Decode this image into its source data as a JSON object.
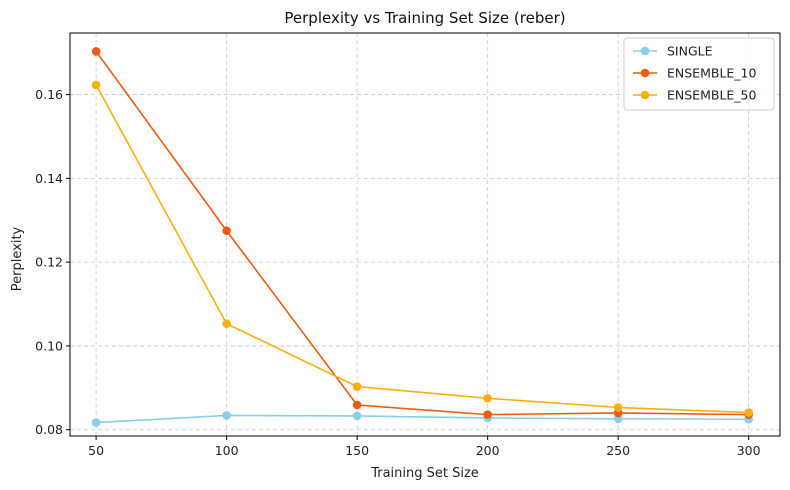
{
  "chart_data": {
    "type": "line",
    "title": "Perplexity vs Training Set Size (reber)",
    "xlabel": "Training Set Size",
    "ylabel": "Perplexity",
    "x": [
      50,
      100,
      150,
      200,
      250,
      300
    ],
    "x_ticks": [
      "50",
      "100",
      "150",
      "200",
      "250",
      "300"
    ],
    "y_ticks": [
      "0.08",
      "0.10",
      "0.12",
      "0.14",
      "0.16"
    ],
    "xlim": [
      40,
      312
    ],
    "ylim": [
      0.0785,
      0.1747
    ],
    "grid": true,
    "legend_position": "top-right",
    "series": [
      {
        "name": "SINGLE",
        "color": "#87ceeb",
        "values": [
          0.0817,
          0.0834,
          0.0833,
          0.0828,
          0.0826,
          0.0825
        ]
      },
      {
        "name": "ENSEMBLE_10",
        "color": "#f05a10",
        "values": [
          0.1703,
          0.1275,
          0.0859,
          0.0836,
          0.084,
          0.0836
        ]
      },
      {
        "name": "ENSEMBLE_50",
        "color": "#f8b00c",
        "values": [
          0.1623,
          0.1053,
          0.0903,
          0.0875,
          0.0853,
          0.0841
        ]
      }
    ]
  }
}
